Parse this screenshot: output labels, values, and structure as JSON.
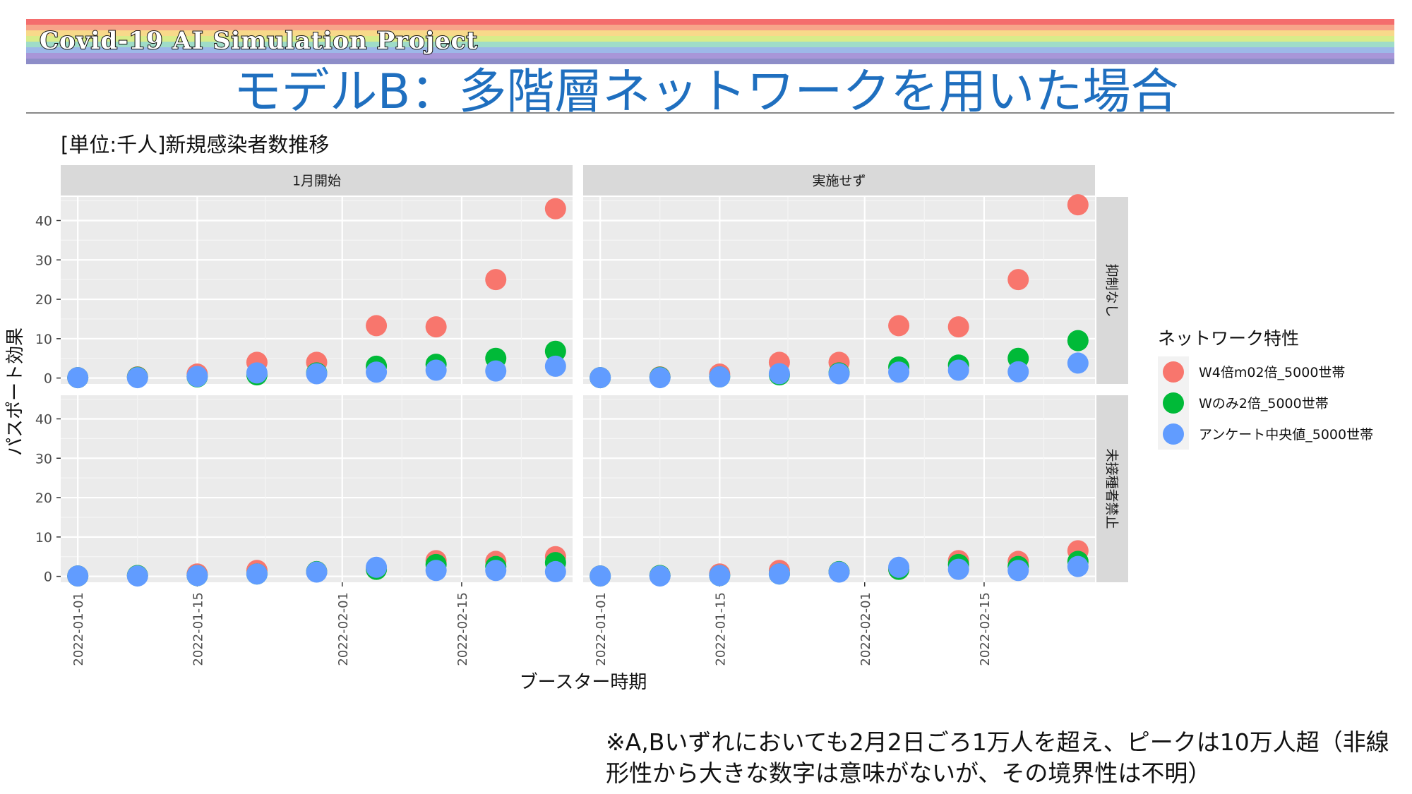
{
  "banner": {
    "project_label": "Covid-19 AI Simulation Project",
    "stripe_colors": [
      "#f46d6d",
      "#f7a58a",
      "#f8d98a",
      "#d8ec8a",
      "#9fdcc8",
      "#9db8e8",
      "#a896d8",
      "#8d8dc8"
    ]
  },
  "page_title": "モデルB：多階層ネットワークを用いた場合",
  "chart_title": "[単位:千人]新規感染者数推移",
  "footnote": "※A,Bいずれにおいても2月2日ごろ1万人を超え、ピークは10万人超（非線形性から大きな数字は意味がないが、その境界性は不明）",
  "chart_data": {
    "type": "scatter",
    "xlabel": "ブースター時期",
    "ylabel": "パスポート効果",
    "ylim": [
      -1.5,
      46
    ],
    "yticks": [
      0,
      10,
      20,
      30,
      40
    ],
    "xlim": [
      "2021-12-30",
      "2022-02-28"
    ],
    "xticks": [
      "2022-01-01",
      "2022-01-15",
      "2022-02-01",
      "2022-02-15"
    ],
    "facet_cols": [
      "1月開始",
      "実施せず"
    ],
    "facet_rows": [
      "抑制なし",
      "未接種者禁止"
    ],
    "x_dates": [
      "2022-01-01",
      "2022-01-08",
      "2022-01-15",
      "2022-01-22",
      "2022-01-29",
      "2022-02-05",
      "2022-02-12",
      "2022-02-19",
      "2022-02-26"
    ],
    "legend_title": "ネットワーク特性",
    "legend_position": "right",
    "grid": true,
    "series": [
      {
        "name": "W4倍m02倍_5000世帯",
        "color": "#f8766d"
      },
      {
        "name": "Wのみ2倍_5000世帯",
        "color": "#00ba38"
      },
      {
        "name": "アンケート中央値_5000世帯",
        "color": "#619cff"
      }
    ],
    "panels": [
      {
        "col": 0,
        "row": 0,
        "values": [
          [
            0.1,
            0.3,
            1.0,
            4.0,
            4.0,
            13.3,
            13.0,
            25.0,
            43.0
          ],
          [
            0.1,
            0.2,
            0.3,
            0.8,
            1.3,
            3.0,
            3.5,
            5.0,
            6.8
          ],
          [
            0.1,
            0.1,
            0.4,
            1.3,
            1.1,
            1.5,
            2.0,
            1.8,
            3.0
          ]
        ]
      },
      {
        "col": 1,
        "row": 0,
        "values": [
          [
            0.1,
            0.3,
            1.0,
            4.0,
            4.0,
            13.3,
            13.0,
            25.0,
            44.0
          ],
          [
            0.1,
            0.2,
            0.3,
            0.8,
            1.3,
            2.8,
            3.3,
            5.0,
            9.5
          ],
          [
            0.1,
            0.1,
            0.3,
            1.1,
            1.1,
            1.5,
            2.0,
            1.6,
            3.8
          ]
        ]
      },
      {
        "col": 0,
        "row": 1,
        "values": [
          [
            0.1,
            0.2,
            0.6,
            1.5,
            1.2,
            1.8,
            4.0,
            3.8,
            5.0
          ],
          [
            0.1,
            0.2,
            0.2,
            0.6,
            1.2,
            1.8,
            3.0,
            2.5,
            3.5
          ],
          [
            0.1,
            0.1,
            0.2,
            0.6,
            1.1,
            2.3,
            1.5,
            1.5,
            1.2
          ]
        ]
      },
      {
        "col": 1,
        "row": 1,
        "values": [
          [
            0.1,
            0.2,
            0.6,
            1.5,
            1.2,
            1.8,
            4.0,
            3.8,
            6.5
          ],
          [
            0.1,
            0.2,
            0.2,
            0.6,
            1.2,
            1.8,
            3.0,
            2.5,
            3.8
          ],
          [
            0.1,
            0.1,
            0.2,
            0.6,
            1.1,
            2.3,
            1.8,
            1.5,
            2.5
          ]
        ]
      }
    ]
  }
}
